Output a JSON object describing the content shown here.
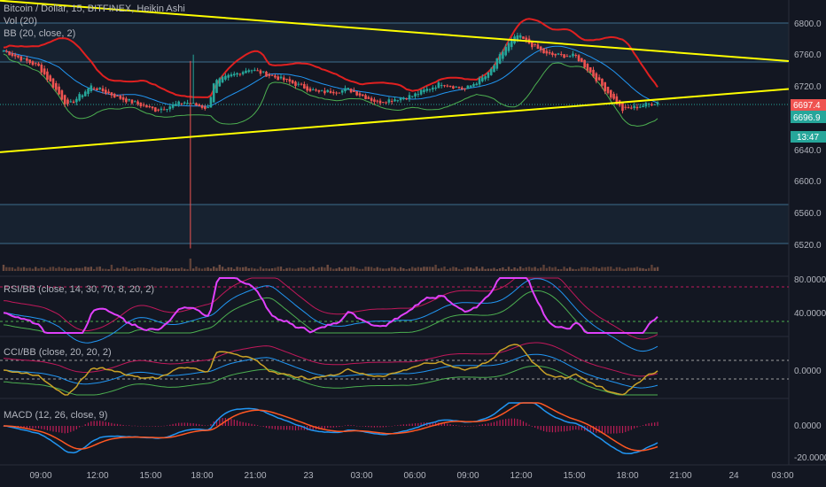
{
  "header": {
    "symbol_line": "Bitcoin / Dollar, 15, BITFINEX, Heikin Ashi",
    "vol_label": "Vol (20)",
    "bb_label": "BB (20, close, 2)"
  },
  "panes": {
    "rsi_label": "RSI/BB (close, 14, 30, 70, 8, 20, 2)",
    "cci_label": "CCI/BB (close, 20, 20, 2)",
    "macd_label": "MACD (12, 26, close, 9)"
  },
  "price_axis": {
    "ticks": [
      "6800.0",
      "6760.0",
      "6720.0",
      "6680.0",
      "6640.0",
      "6600.0",
      "6560.0",
      "6520.0"
    ],
    "last_price": "6697.4",
    "second_price": "6696.9",
    "countdown": "13:47"
  },
  "rsi_axis": {
    "ticks": [
      "80.0000",
      "40.0000"
    ]
  },
  "cci_axis": {
    "ticks": [
      "0.0000"
    ]
  },
  "macd_axis": {
    "ticks": [
      "0.0000",
      "-20.0000"
    ]
  },
  "time_axis": {
    "ticks": [
      "09:00",
      "12:00",
      "15:00",
      "18:00",
      "21:00",
      "23",
      "03:00",
      "06:00",
      "09:00",
      "12:00",
      "15:00",
      "18:00",
      "21:00",
      "24",
      "03:00"
    ]
  },
  "colors": {
    "background": "#131722",
    "up": "#26a69a",
    "down": "#ef5350",
    "trendline": "#ffff00",
    "bb_upper": "#e02020",
    "bb_basis": "#2196f3",
    "bb_lower": "#4caf50",
    "rsi": "#e040fb",
    "cci": "#c9a227",
    "macd": "#2196f3",
    "signal": "#ff5722"
  },
  "chart_data": {
    "type": "candlestick",
    "title": "Bitcoin / Dollar, 15, BITFINEX, Heikin Ashi",
    "ylim": [
      6500,
      6820
    ],
    "price_keypoints": [
      [
        0,
        6765
      ],
      [
        12,
        6745
      ],
      [
        22,
        6695
      ],
      [
        30,
        6720
      ],
      [
        40,
        6705
      ],
      [
        52,
        6690
      ],
      [
        62,
        6700
      ],
      [
        70,
        6692
      ],
      [
        72,
        6725
      ],
      [
        84,
        6742
      ],
      [
        96,
        6728
      ],
      [
        108,
        6712
      ],
      [
        118,
        6716
      ],
      [
        128,
        6700
      ],
      [
        140,
        6708
      ],
      [
        150,
        6724
      ],
      [
        158,
        6716
      ],
      [
        166,
        6735
      ],
      [
        172,
        6770
      ],
      [
        176,
        6784
      ],
      [
        186,
        6760
      ],
      [
        196,
        6758
      ],
      [
        204,
        6725
      ],
      [
        212,
        6690
      ],
      [
        224,
        6700
      ]
    ],
    "trendlines": [
      {
        "start": [
          0,
          6828
        ],
        "end": [
          240,
          6760
        ]
      },
      {
        "start": [
          0,
          6637
        ],
        "end": [
          240,
          6708
        ]
      }
    ],
    "levels": [
      6800,
      6753,
      6565,
      6522
    ],
    "last_price": 6697.4
  }
}
